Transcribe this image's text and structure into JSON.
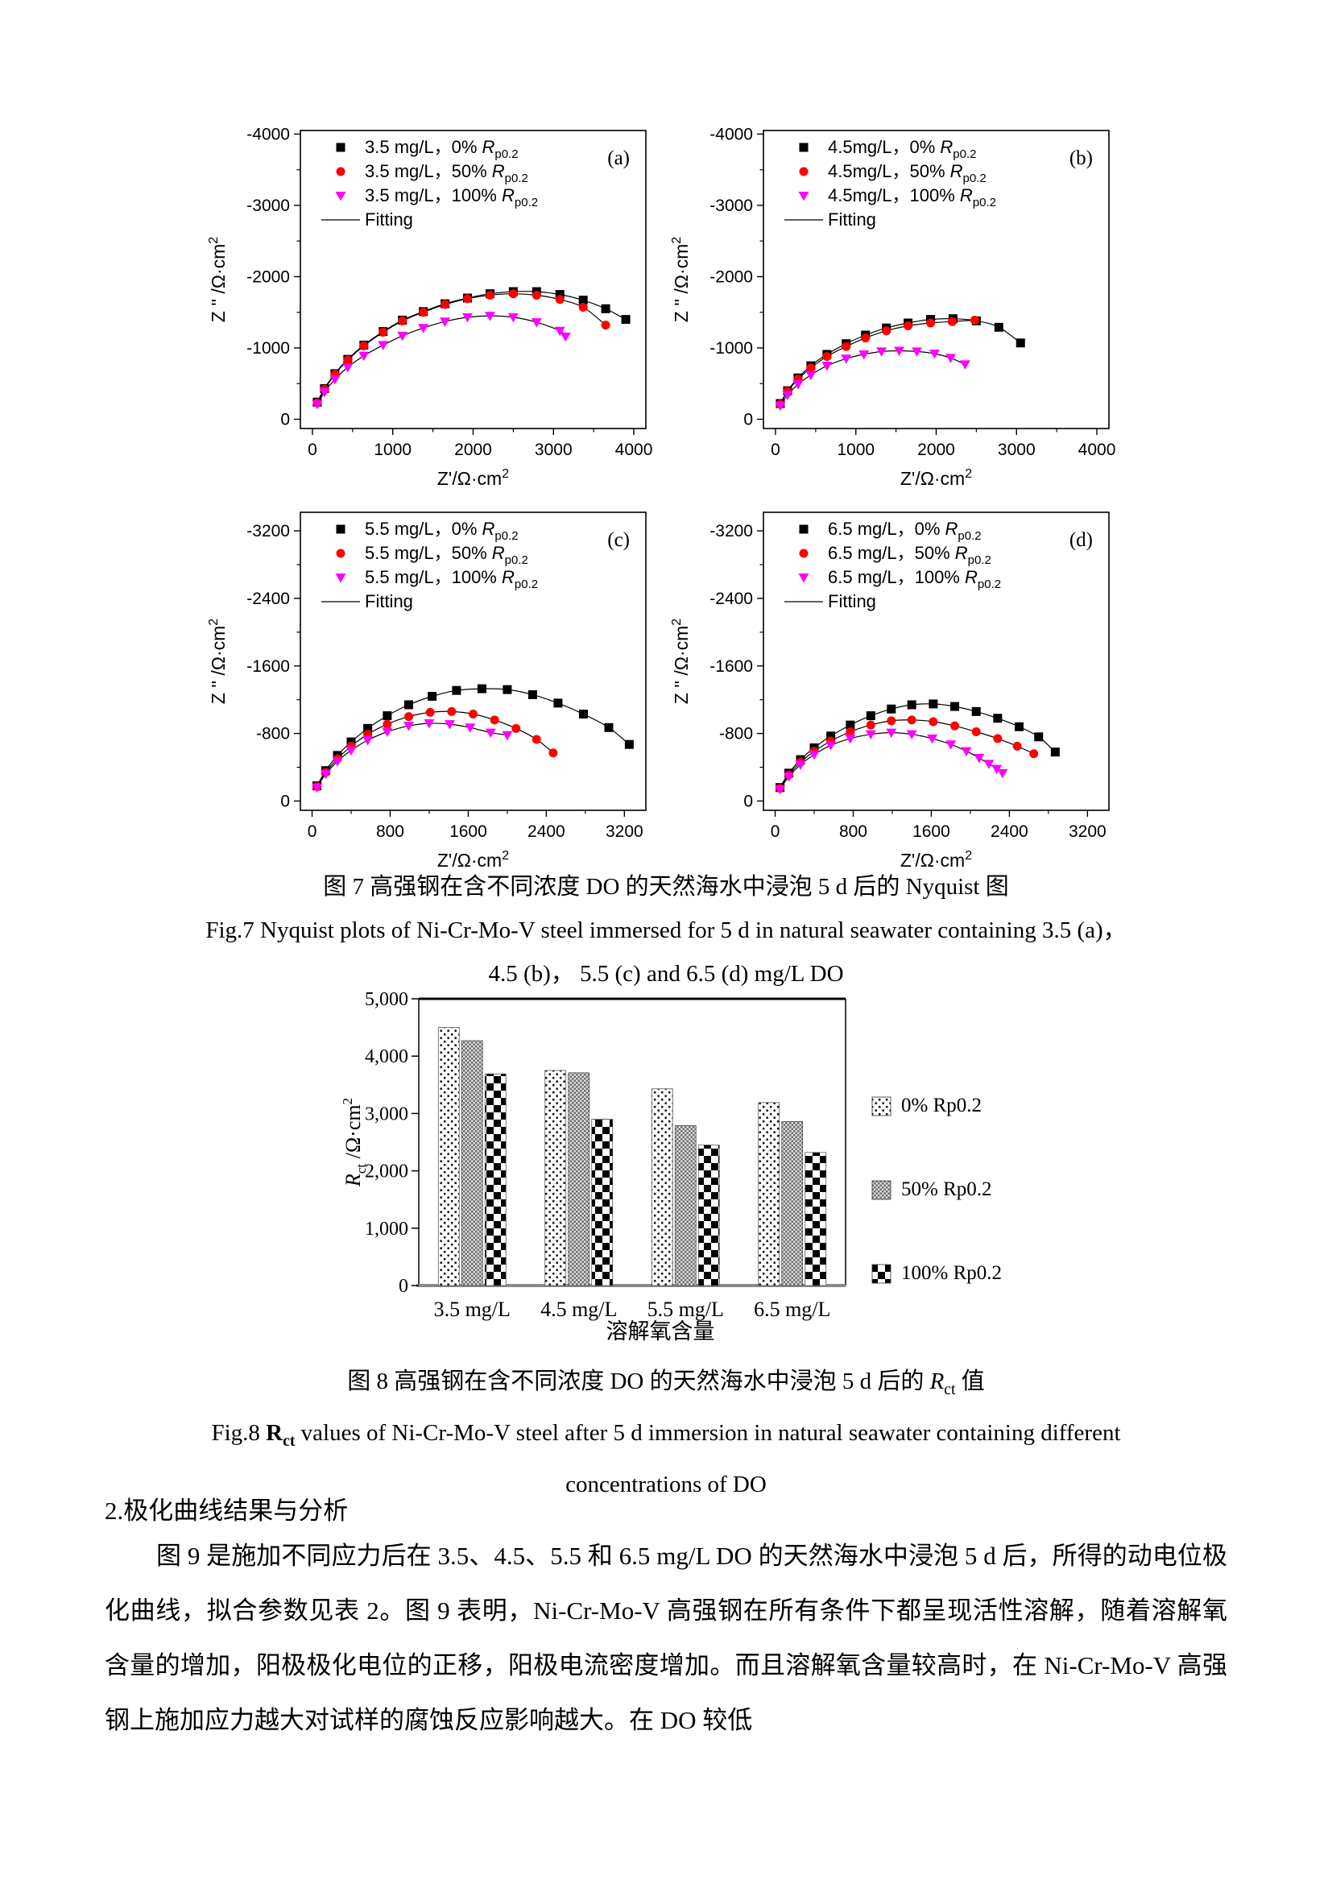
{
  "page": {
    "caption7_zh": "图 7 高强钢在含不同浓度 DO 的天然海水中浸泡 5 d 后的 Nyquist 图",
    "caption7_en_line1": "Fig.7 Nyquist plots of Ni-Cr-Mo-V steel immersed for 5 d in natural seawater containing 3.5 (a)，",
    "caption7_en_line2": "4.5 (b)， 5.5 (c) and 6.5 (d) mg/L DO",
    "caption8_zh_pre": "图 8 高强钢在含不同浓度 DO 的天然海水中浸泡 5 d 后的 ",
    "caption8_zh_r": "R",
    "caption8_zh_sub": "ct",
    "caption8_zh_post": " 值",
    "caption8_en_pre": "Fig.8 ",
    "caption8_en_r": "R",
    "caption8_en_sub": "ct",
    "caption8_en_post": " values of Ni-Cr-Mo-V steel after 5 d immersion in natural seawater containing different",
    "caption8_en_line2": "concentrations of DO",
    "section_heading": "2.极化曲线结果与分析",
    "body_paragraph": "图 9 是施加不同应力后在 3.5、4.5、5.5 和 6.5 mg/L DO 的天然海水中浸泡 5 d 后，所得的动电位极化曲线，拟合参数见表 2。图 9 表明，Ni-Cr-Mo-V 高强钢在所有条件下都呈现活性溶解，随着溶解氧含量的增加，阳极极化电位的正移，阳极电流密度增加。而且溶解氧含量较高时，在 Ni-Cr-Mo-V 高强钢上施加应力越大对试样的腐蚀反应影响越大。在 DO 较低"
  },
  "chart_data": [
    {
      "type": "scatter",
      "panel": "(a)",
      "xlabel_base": "Z'/Ω·cm",
      "label_sup": "2",
      "ylabel_base": "Z '' /Ω·cm",
      "xlim": [
        -150,
        4150
      ],
      "xticks": [
        0,
        1000,
        2000,
        3000,
        4000
      ],
      "ylim": [
        -130,
        4050
      ],
      "yticks": [
        0,
        1000,
        2000,
        3000,
        4000
      ],
      "fitting_label": "Fitting",
      "series": [
        {
          "label_prefix": "3.5 mg/L，0% ",
          "label_sub": "p0.2",
          "marker": "square",
          "color": "#000000",
          "points": [
            [
              60,
              -240
            ],
            [
              150,
              -430
            ],
            [
              280,
              -640
            ],
            [
              440,
              -840
            ],
            [
              640,
              -1040
            ],
            [
              880,
              -1230
            ],
            [
              1120,
              -1390
            ],
            [
              1380,
              -1510
            ],
            [
              1650,
              -1620
            ],
            [
              1930,
              -1700
            ],
            [
              2210,
              -1760
            ],
            [
              2500,
              -1790
            ],
            [
              2790,
              -1790
            ],
            [
              3080,
              -1750
            ],
            [
              3370,
              -1670
            ],
            [
              3650,
              -1550
            ],
            [
              3900,
              -1400
            ]
          ]
        },
        {
          "label_prefix": "3.5 mg/L，50% ",
          "label_sub": "p0.2",
          "marker": "circle",
          "color": "#ff0000",
          "points": [
            [
              60,
              -230
            ],
            [
              150,
              -420
            ],
            [
              280,
              -630
            ],
            [
              440,
              -830
            ],
            [
              640,
              -1030
            ],
            [
              880,
              -1220
            ],
            [
              1120,
              -1380
            ],
            [
              1380,
              -1500
            ],
            [
              1650,
              -1610
            ],
            [
              1930,
              -1690
            ],
            [
              2210,
              -1740
            ],
            [
              2500,
              -1760
            ],
            [
              2790,
              -1740
            ],
            [
              3080,
              -1680
            ],
            [
              3370,
              -1570
            ],
            [
              3650,
              -1320
            ]
          ]
        },
        {
          "label_prefix": "3.5 mg/L，100% ",
          "label_sub": "p0.2",
          "marker": "triangle",
          "color": "#ff00ff",
          "points": [
            [
              60,
              -210
            ],
            [
              150,
              -380
            ],
            [
              280,
              -560
            ],
            [
              440,
              -730
            ],
            [
              640,
              -890
            ],
            [
              880,
              -1040
            ],
            [
              1120,
              -1170
            ],
            [
              1380,
              -1280
            ],
            [
              1650,
              -1370
            ],
            [
              1930,
              -1430
            ],
            [
              2210,
              -1450
            ],
            [
              2500,
              -1430
            ],
            [
              2790,
              -1360
            ],
            [
              3080,
              -1240
            ],
            [
              3150,
              -1160
            ]
          ]
        }
      ]
    },
    {
      "type": "scatter",
      "panel": "(b)",
      "xlabel_base": "Z'/Ω·cm",
      "label_sup": "2",
      "ylabel_base": "Z '' /Ω·cm",
      "xlim": [
        -150,
        4150
      ],
      "xticks": [
        0,
        1000,
        2000,
        3000,
        4000
      ],
      "ylim": [
        -130,
        4050
      ],
      "yticks": [
        0,
        1000,
        2000,
        3000,
        4000
      ],
      "fitting_label": "Fitting",
      "series": [
        {
          "label_prefix": "4.5mg/L，0% ",
          "label_sub": "p0.2",
          "marker": "square",
          "color": "#000000",
          "points": [
            [
              60,
              -220
            ],
            [
              150,
              -400
            ],
            [
              280,
              -580
            ],
            [
              440,
              -750
            ],
            [
              640,
              -910
            ],
            [
              880,
              -1060
            ],
            [
              1120,
              -1180
            ],
            [
              1380,
              -1280
            ],
            [
              1650,
              -1350
            ],
            [
              1930,
              -1400
            ],
            [
              2210,
              -1410
            ],
            [
              2500,
              -1380
            ],
            [
              2780,
              -1290
            ],
            [
              3050,
              -1070
            ]
          ]
        },
        {
          "label_prefix": "4.5mg/L，50% ",
          "label_sub": "p0.2",
          "marker": "circle",
          "color": "#ff0000",
          "points": [
            [
              60,
              -210
            ],
            [
              150,
              -390
            ],
            [
              280,
              -560
            ],
            [
              440,
              -720
            ],
            [
              640,
              -880
            ],
            [
              880,
              -1020
            ],
            [
              1120,
              -1140
            ],
            [
              1380,
              -1240
            ],
            [
              1650,
              -1310
            ],
            [
              1930,
              -1350
            ],
            [
              2200,
              -1370
            ],
            [
              2480,
              -1390
            ]
          ]
        },
        {
          "label_prefix": "4.5mg/L，100% ",
          "label_sub": "p0.2",
          "marker": "triangle",
          "color": "#ff00ff",
          "points": [
            [
              60,
              -190
            ],
            [
              150,
              -340
            ],
            [
              280,
              -490
            ],
            [
              440,
              -620
            ],
            [
              640,
              -750
            ],
            [
              880,
              -850
            ],
            [
              1100,
              -910
            ],
            [
              1320,
              -950
            ],
            [
              1540,
              -960
            ],
            [
              1760,
              -950
            ],
            [
              1980,
              -920
            ],
            [
              2180,
              -860
            ],
            [
              2360,
              -770
            ]
          ]
        }
      ]
    },
    {
      "type": "scatter",
      "panel": "(c)",
      "xlabel_base": "Z'/Ω·cm",
      "label_sup": "2",
      "ylabel_base": "Z '' /Ω·cm",
      "xlim": [
        -120,
        3420
      ],
      "xticks": [
        0,
        800,
        1600,
        2400,
        3200
      ],
      "ylim": [
        -110,
        3420
      ],
      "yticks": [
        0,
        800,
        1600,
        2400,
        3200
      ],
      "fitting_label": "Fitting",
      "series": [
        {
          "label_prefix": "5.5 mg/L，0% ",
          "label_sub": "p0.2",
          "marker": "square",
          "color": "#000000",
          "points": [
            [
              50,
              -180
            ],
            [
              140,
              -360
            ],
            [
              260,
              -540
            ],
            [
              400,
              -700
            ],
            [
              570,
              -860
            ],
            [
              770,
              -1010
            ],
            [
              990,
              -1140
            ],
            [
              1230,
              -1240
            ],
            [
              1480,
              -1310
            ],
            [
              1740,
              -1330
            ],
            [
              2000,
              -1320
            ],
            [
              2260,
              -1260
            ],
            [
              2520,
              -1160
            ],
            [
              2780,
              -1030
            ],
            [
              3040,
              -870
            ],
            [
              3250,
              -670
            ]
          ]
        },
        {
          "label_prefix": "5.5 mg/L，50% ",
          "label_sub": "p0.2",
          "marker": "circle",
          "color": "#ff0000",
          "points": [
            [
              50,
              -170
            ],
            [
              140,
              -340
            ],
            [
              260,
              -500
            ],
            [
              400,
              -650
            ],
            [
              570,
              -790
            ],
            [
              770,
              -910
            ],
            [
              990,
              -1000
            ],
            [
              1210,
              -1050
            ],
            [
              1430,
              -1060
            ],
            [
              1650,
              -1030
            ],
            [
              1870,
              -960
            ],
            [
              2090,
              -860
            ],
            [
              2300,
              -730
            ],
            [
              2470,
              -570
            ]
          ]
        },
        {
          "label_prefix": "5.5 mg/L，100% ",
          "label_sub": "p0.2",
          "marker": "triangle",
          "color": "#ff00ff",
          "points": [
            [
              50,
              -160
            ],
            [
              140,
              -320
            ],
            [
              260,
              -470
            ],
            [
              400,
              -600
            ],
            [
              570,
              -720
            ],
            [
              770,
              -820
            ],
            [
              990,
              -890
            ],
            [
              1200,
              -920
            ],
            [
              1410,
              -910
            ],
            [
              1620,
              -870
            ],
            [
              1830,
              -810
            ],
            [
              2000,
              -780
            ]
          ]
        }
      ]
    },
    {
      "type": "scatter",
      "panel": "(d)",
      "xlabel_base": "Z'/Ω·cm",
      "label_sup": "2",
      "ylabel_base": "Z '' /Ω·cm",
      "xlim": [
        -120,
        3420
      ],
      "xticks": [
        0,
        800,
        1600,
        2400,
        3200
      ],
      "ylim": [
        -110,
        3420
      ],
      "yticks": [
        0,
        800,
        1600,
        2400,
        3200
      ],
      "fitting_label": "Fitting",
      "series": [
        {
          "label_prefix": "6.5 mg/L，0% ",
          "label_sub": "p0.2",
          "marker": "square",
          "color": "#000000",
          "points": [
            [
              50,
              -160
            ],
            [
              140,
              -330
            ],
            [
              260,
              -490
            ],
            [
              400,
              -630
            ],
            [
              570,
              -770
            ],
            [
              770,
              -900
            ],
            [
              980,
              -1010
            ],
            [
              1190,
              -1090
            ],
            [
              1400,
              -1140
            ],
            [
              1620,
              -1150
            ],
            [
              1840,
              -1120
            ],
            [
              2060,
              -1060
            ],
            [
              2280,
              -980
            ],
            [
              2500,
              -880
            ],
            [
              2700,
              -760
            ],
            [
              2870,
              -580
            ]
          ]
        },
        {
          "label_prefix": "6.5 mg/L，50% ",
          "label_sub": "p0.2",
          "marker": "circle",
          "color": "#ff0000",
          "points": [
            [
              50,
              -150
            ],
            [
              140,
              -310
            ],
            [
              260,
              -460
            ],
            [
              400,
              -590
            ],
            [
              570,
              -710
            ],
            [
              770,
              -820
            ],
            [
              980,
              -900
            ],
            [
              1190,
              -950
            ],
            [
              1400,
              -960
            ],
            [
              1620,
              -940
            ],
            [
              1840,
              -890
            ],
            [
              2060,
              -820
            ],
            [
              2280,
              -740
            ],
            [
              2480,
              -650
            ],
            [
              2650,
              -560
            ]
          ]
        },
        {
          "label_prefix": "6.5 mg/L，100% ",
          "label_sub": "p0.2",
          "marker": "triangle",
          "color": "#ff00ff",
          "points": [
            [
              50,
              -140
            ],
            [
              140,
              -290
            ],
            [
              260,
              -430
            ],
            [
              400,
              -550
            ],
            [
              570,
              -660
            ],
            [
              770,
              -740
            ],
            [
              980,
              -790
            ],
            [
              1190,
              -810
            ],
            [
              1400,
              -790
            ],
            [
              1610,
              -740
            ],
            [
              1800,
              -670
            ],
            [
              1960,
              -590
            ],
            [
              2090,
              -510
            ],
            [
              2190,
              -440
            ],
            [
              2270,
              -380
            ],
            [
              2330,
              -330
            ]
          ]
        }
      ]
    },
    {
      "type": "bar",
      "categories": [
        "3.5 mg/L",
        "4.5 mg/L",
        "5.5 mg/L",
        "6.5 mg/L"
      ],
      "series": [
        {
          "name": "0% Rp0.2",
          "pattern": "dots",
          "values": [
            4500,
            3750,
            3430,
            3190
          ]
        },
        {
          "name": "50% Rp0.2",
          "pattern": "gray",
          "values": [
            4270,
            3710,
            2790,
            2860
          ]
        },
        {
          "name": "100% Rp0.2",
          "pattern": "checker",
          "values": [
            3690,
            2900,
            2450,
            2320
          ]
        }
      ],
      "ylim": [
        0,
        5000
      ],
      "yticks": [
        "0",
        "1,000",
        "2,000",
        "3,000",
        "4,000",
        "5,000"
      ],
      "ylabel_r": "R",
      "ylabel_sub": "ct",
      "ylabel_mid": " /Ω·cm",
      "ylabel_sup": "2",
      "xlabel": "溶解氧含量",
      "legend_position": "right",
      "grid": false
    }
  ]
}
